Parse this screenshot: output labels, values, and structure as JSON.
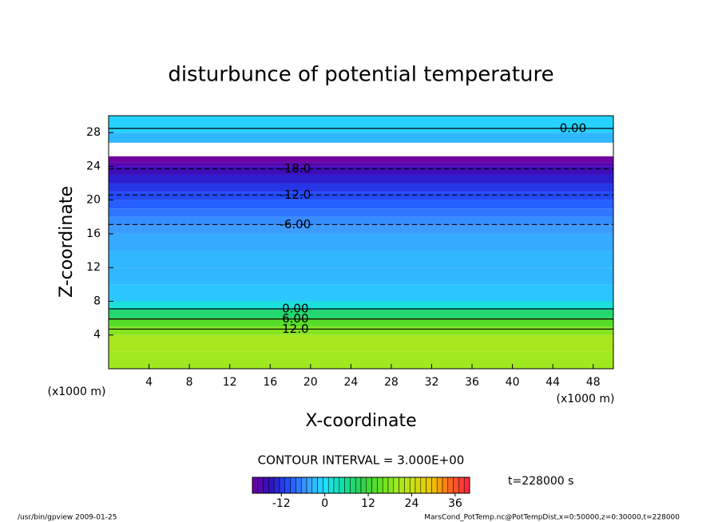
{
  "chart_data": {
    "type": "contour",
    "title": "disturbunce of potential temperature",
    "x_label": "X-coordinate",
    "y_label": "Z-coordinate",
    "x_unit": "(x1000 m)",
    "y_unit": "(x1000 m)",
    "xlim": [
      0,
      50
    ],
    "xticks": [
      4,
      8,
      12,
      16,
      20,
      24,
      28,
      32,
      36,
      40,
      44,
      48
    ],
    "ylim": [
      0,
      30
    ],
    "yticks": [
      4,
      8,
      12,
      16,
      20,
      24,
      28
    ],
    "profile": {
      "z": [
        0,
        2,
        4,
        5,
        6,
        7,
        8,
        10,
        12,
        14,
        16,
        17,
        18,
        19,
        20,
        21,
        22,
        23,
        24,
        24.5,
        25.2,
        26.8,
        28
      ],
      "values": [
        20,
        21,
        18,
        14,
        8,
        2,
        -2,
        -3,
        -3,
        -4,
        -5,
        -6,
        -7.5,
        -9,
        -10.5,
        -12,
        -14,
        -16,
        -18,
        -20,
        null,
        -3,
        -1
      ]
    },
    "contours": [
      {
        "value": 0,
        "label": "0.00",
        "z": 28.5
      },
      {
        "value": -18,
        "label": "-18.0",
        "z": 23.7
      },
      {
        "value": -12,
        "label": "-12.0",
        "z": 20.6
      },
      {
        "value": -6,
        "label": "-6.00",
        "z": 17.1
      },
      {
        "value": 0,
        "label": "0.00",
        "z": 7.1
      },
      {
        "value": 6,
        "label": "6.00",
        "z": 5.9
      },
      {
        "value": 12,
        "label": "12.0",
        "z": 4.7
      }
    ],
    "contour_interval": "CONTOUR INTERVAL = 3.000E+00",
    "time_label": "t=228000 s",
    "colorbar": {
      "lim": [
        -20,
        40
      ],
      "ticks": [
        -12,
        0,
        12,
        24,
        36
      ],
      "colors": [
        "#7000a0",
        "#3010c0",
        "#2050ff",
        "#3c9cff",
        "#20e0ff",
        "#10e0a0",
        "#30d050",
        "#60e020",
        "#a0e820",
        "#d0e010",
        "#f0c000",
        "#ff6020",
        "#ff2040"
      ]
    },
    "footer_left": "/usr/bin/gpview   2009-01-25",
    "footer_right": "MarsCond_PotTemp.nc@PotTempDist,x=0:50000,z=0:30000,t=228000"
  }
}
